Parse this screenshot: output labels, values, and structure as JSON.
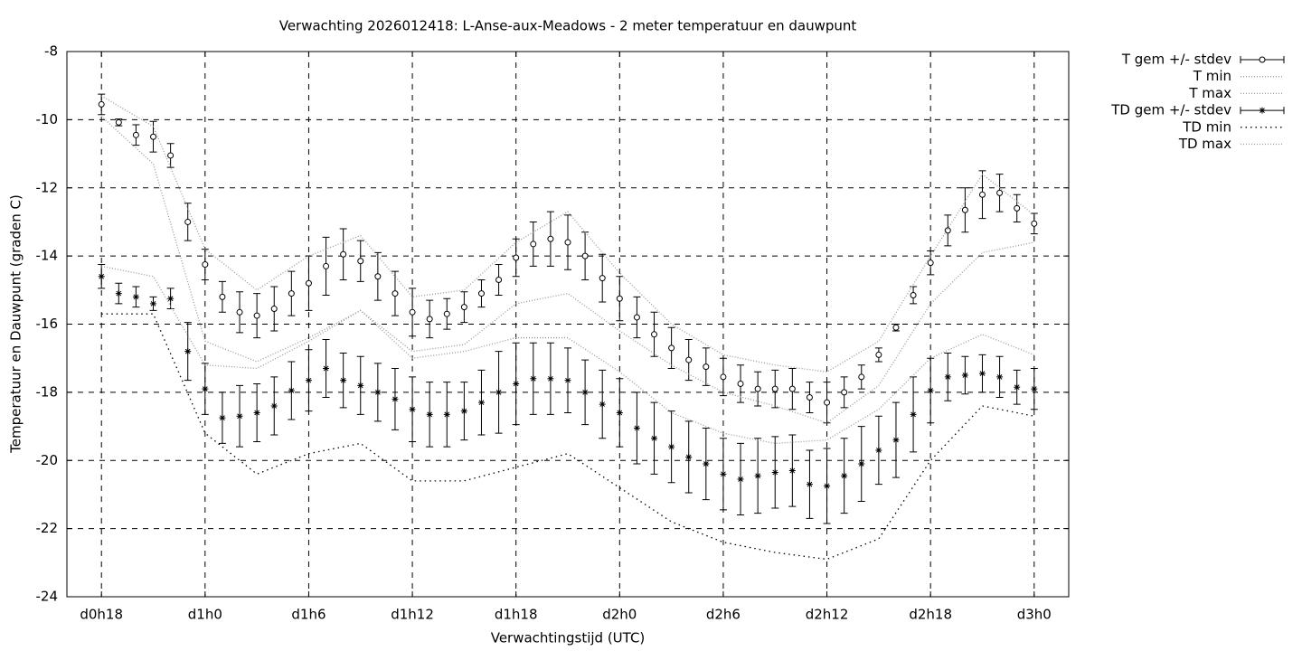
{
  "chart_data": {
    "type": "errorbar-line",
    "title": "Verwachting 2026012418: L-Anse-aux-Meadows - 2 meter temperatuur en dauwpunt",
    "xlabel": "Verwachtingstijd (UTC)",
    "ylabel": "Temperatuur en Dauwpunt (graden C)",
    "xlim": [
      16,
      74
    ],
    "xticks": [
      {
        "value": 18,
        "label": "d0h18"
      },
      {
        "value": 24,
        "label": "d1h0"
      },
      {
        "value": 30,
        "label": "d1h6"
      },
      {
        "value": 36,
        "label": "d1h12"
      },
      {
        "value": 42,
        "label": "d1h18"
      },
      {
        "value": 48,
        "label": "d2h0"
      },
      {
        "value": 54,
        "label": "d2h6"
      },
      {
        "value": 60,
        "label": "d2h12"
      },
      {
        "value": 66,
        "label": "d2h18"
      },
      {
        "value": 72,
        "label": "d3h0"
      }
    ],
    "ylim": [
      -24,
      -8
    ],
    "yticks": [
      -24,
      -22,
      -20,
      -18,
      -16,
      -14,
      -12,
      -10,
      -8
    ],
    "grid": true,
    "legend": "top-right-outside",
    "series": [
      {
        "name": "T gem +/- stdev",
        "marker": "circle",
        "color": "#000000",
        "x": [
          18,
          19,
          20,
          21,
          22,
          23,
          24,
          25,
          26,
          27,
          28,
          29,
          30,
          31,
          32,
          33,
          34,
          35,
          36,
          37,
          38,
          39,
          40,
          41,
          42,
          43,
          44,
          45,
          46,
          47,
          48,
          49,
          50,
          51,
          52,
          53,
          54,
          55,
          56,
          57,
          58,
          59,
          60,
          61,
          62,
          63,
          64,
          65,
          66,
          67,
          68,
          69,
          70,
          71,
          72
        ],
        "values": [
          -9.55,
          -10.08,
          -10.45,
          -10.5,
          -11.05,
          -13.0,
          -14.25,
          -15.2,
          -15.65,
          -15.75,
          -15.55,
          -15.1,
          -14.8,
          -14.3,
          -13.95,
          -14.15,
          -14.6,
          -15.1,
          -15.65,
          -15.85,
          -15.7,
          -15.5,
          -15.1,
          -14.7,
          -14.05,
          -13.65,
          -13.5,
          -13.6,
          -14.0,
          -14.65,
          -15.25,
          -15.8,
          -16.3,
          -16.7,
          -17.05,
          -17.25,
          -17.55,
          -17.75,
          -17.9,
          -17.9,
          -17.9,
          -18.15,
          -18.3,
          -18.0,
          -17.55,
          -16.9,
          -16.1,
          -15.15,
          -14.2,
          -13.25,
          -12.65,
          -12.2,
          -12.15,
          -12.6,
          -13.05
        ],
        "errors": [
          0.3,
          0.1,
          0.3,
          0.45,
          0.35,
          0.55,
          0.45,
          0.45,
          0.6,
          0.65,
          0.65,
          0.65,
          0.8,
          0.85,
          0.75,
          0.6,
          0.7,
          0.65,
          0.7,
          0.55,
          0.45,
          0.45,
          0.4,
          0.45,
          0.55,
          0.65,
          0.8,
          0.8,
          0.7,
          0.7,
          0.65,
          0.6,
          0.65,
          0.6,
          0.6,
          0.55,
          0.55,
          0.55,
          0.5,
          0.55,
          0.6,
          0.45,
          0.6,
          0.45,
          0.35,
          0.2,
          0.1,
          0.25,
          0.35,
          0.45,
          0.65,
          0.7,
          0.55,
          0.4,
          0.3
        ]
      },
      {
        "name": "T min",
        "style": "dotted",
        "color": "#999999",
        "x": [
          18,
          21,
          24,
          27,
          30,
          33,
          36,
          39,
          42,
          45,
          48,
          51,
          54,
          57,
          60,
          63,
          66,
          69,
          72
        ],
        "values": [
          -9.9,
          -11.3,
          -16.5,
          -17.1,
          -16.4,
          -15.6,
          -16.8,
          -16.6,
          -15.4,
          -15.1,
          -16.2,
          -17.2,
          -18.0,
          -18.4,
          -18.9,
          -17.8,
          -15.4,
          -13.9,
          -13.6
        ]
      },
      {
        "name": "T max",
        "style": "dotted",
        "color": "#999999",
        "x": [
          18,
          21,
          24,
          27,
          30,
          33,
          36,
          39,
          42,
          45,
          48,
          51,
          54,
          57,
          60,
          63,
          66,
          69,
          72
        ],
        "values": [
          -9.3,
          -10.2,
          -13.8,
          -15.0,
          -14.0,
          -13.4,
          -15.2,
          -15.0,
          -13.6,
          -12.7,
          -14.5,
          -16.0,
          -16.9,
          -17.2,
          -17.4,
          -16.5,
          -14.0,
          -11.6,
          -12.8
        ]
      },
      {
        "name": "TD gem +/- stdev",
        "marker": "star",
        "color": "#000000",
        "x": [
          18,
          19,
          20,
          21,
          22,
          23,
          24,
          25,
          26,
          27,
          28,
          29,
          30,
          31,
          32,
          33,
          34,
          35,
          36,
          37,
          38,
          39,
          40,
          41,
          42,
          43,
          44,
          45,
          46,
          47,
          48,
          49,
          50,
          51,
          52,
          53,
          54,
          55,
          56,
          57,
          58,
          59,
          60,
          61,
          62,
          63,
          64,
          65,
          66,
          67,
          68,
          69,
          70,
          71,
          72
        ],
        "values": [
          -14.6,
          -15.1,
          -15.2,
          -15.4,
          -15.25,
          -16.8,
          -17.9,
          -18.75,
          -18.7,
          -18.6,
          -18.4,
          -17.95,
          -17.65,
          -17.3,
          -17.65,
          -17.8,
          -18.0,
          -18.2,
          -18.5,
          -18.65,
          -18.65,
          -18.55,
          -18.3,
          -18.0,
          -17.75,
          -17.6,
          -17.6,
          -17.65,
          -18.0,
          -18.35,
          -18.6,
          -19.05,
          -19.35,
          -19.6,
          -19.9,
          -20.1,
          -20.4,
          -20.55,
          -20.45,
          -20.35,
          -20.3,
          -20.7,
          -20.75,
          -20.45,
          -20.1,
          -19.7,
          -19.4,
          -18.65,
          -17.95,
          -17.55,
          -17.5,
          -17.45,
          -17.55,
          -17.85,
          -17.9
        ],
        "errors": [
          0.35,
          0.3,
          0.3,
          0.2,
          0.3,
          0.85,
          0.75,
          0.75,
          0.9,
          0.85,
          0.85,
          0.85,
          0.9,
          0.85,
          0.8,
          0.85,
          0.85,
          0.9,
          0.95,
          0.95,
          0.95,
          0.85,
          0.95,
          1.2,
          1.2,
          1.05,
          1.05,
          0.95,
          0.95,
          1.0,
          1.0,
          1.05,
          1.05,
          1.05,
          1.05,
          1.05,
          1.05,
          1.05,
          1.1,
          1.05,
          1.05,
          1.0,
          1.1,
          1.1,
          1.1,
          1.0,
          1.1,
          1.1,
          0.95,
          0.7,
          0.55,
          0.55,
          0.6,
          0.5,
          0.6
        ]
      },
      {
        "name": "TD min",
        "style": "loose-dotted",
        "color": "#000000",
        "x": [
          18,
          21,
          24,
          27,
          30,
          33,
          36,
          39,
          42,
          45,
          48,
          51,
          54,
          57,
          60,
          63,
          66,
          69,
          72
        ],
        "values": [
          -15.7,
          -15.7,
          -19.2,
          -20.4,
          -19.8,
          -19.5,
          -20.6,
          -20.6,
          -20.2,
          -19.8,
          -20.8,
          -21.8,
          -22.4,
          -22.7,
          -22.9,
          -22.3,
          -20.0,
          -18.4,
          -18.7
        ]
      },
      {
        "name": "TD max",
        "style": "dotted",
        "color": "#999999",
        "x": [
          18,
          21,
          24,
          27,
          30,
          33,
          36,
          39,
          42,
          45,
          48,
          51,
          54,
          57,
          60,
          63,
          66,
          69,
          72
        ],
        "values": [
          -14.3,
          -14.6,
          -17.2,
          -17.3,
          -16.5,
          -15.6,
          -17.0,
          -16.8,
          -16.4,
          -16.4,
          -17.4,
          -18.6,
          -19.2,
          -19.5,
          -19.4,
          -18.5,
          -17.0,
          -16.3,
          -16.9
        ]
      }
    ]
  }
}
